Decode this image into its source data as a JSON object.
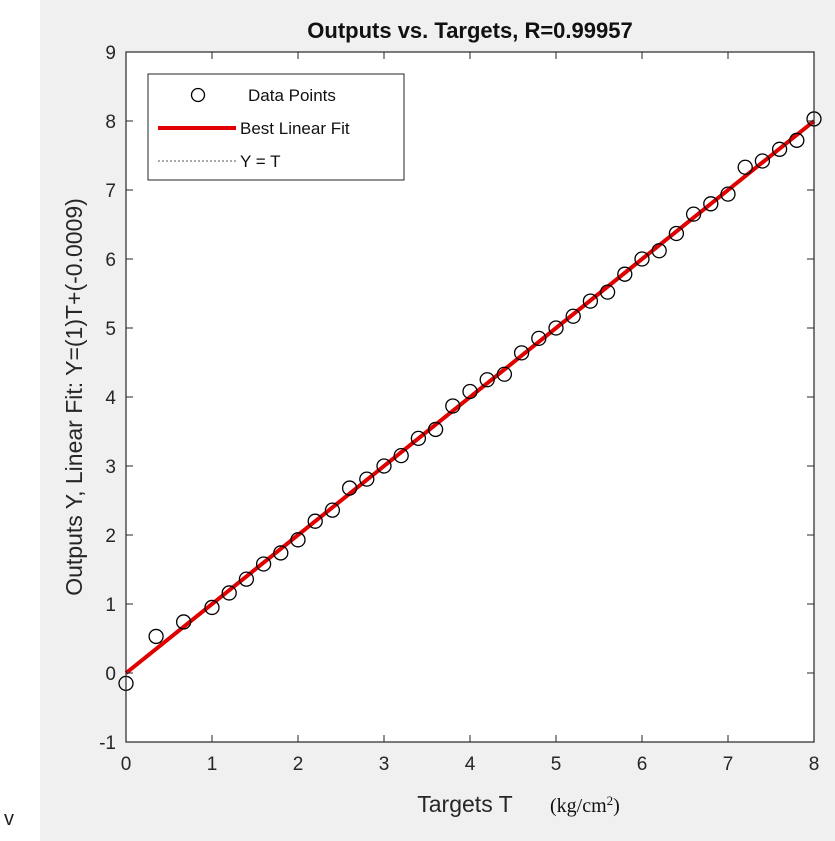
{
  "stray_text": "v",
  "chart_data": {
    "type": "scatter",
    "title": "Outputs vs. Targets, R=0.99957",
    "xlabel": "Targets T",
    "xlabel_units": "(kg/cm",
    "xlabel_units_sup": "2",
    "xlabel_units_close": ")",
    "ylabel": "Outputs Y,  Linear Fit: Y=(1)T+(-0.0009)",
    "xlim": [
      0,
      8
    ],
    "ylim": [
      -1,
      9
    ],
    "xticks": [
      0,
      1,
      2,
      3,
      4,
      5,
      6,
      7,
      8
    ],
    "yticks": [
      -1,
      0,
      1,
      2,
      3,
      4,
      5,
      6,
      7,
      8,
      9
    ],
    "grid": false,
    "legend_position": "top-left",
    "legend": [
      {
        "label": "Data Points",
        "style": "circle-marker",
        "color": "#000000"
      },
      {
        "label": "Best Linear Fit",
        "style": "solid-line",
        "color": "#e00000"
      },
      {
        "label": "Y = T",
        "style": "dotted-line",
        "color": "#000000"
      }
    ],
    "series": [
      {
        "name": "Data Points",
        "x": [
          0.0,
          0.35,
          0.67,
          1.0,
          1.2,
          1.4,
          1.6,
          1.8,
          2.0,
          2.2,
          2.4,
          2.6,
          2.8,
          3.0,
          3.2,
          3.4,
          3.6,
          3.8,
          4.0,
          4.2,
          4.4,
          4.6,
          4.8,
          5.0,
          5.2,
          5.4,
          5.6,
          5.8,
          6.0,
          6.2,
          6.4,
          6.6,
          6.8,
          7.0,
          7.2,
          7.4,
          7.6,
          7.8,
          8.0
        ],
        "y": [
          -0.15,
          0.53,
          0.74,
          0.95,
          1.16,
          1.36,
          1.58,
          1.74,
          1.93,
          2.2,
          2.36,
          2.68,
          2.81,
          3.0,
          3.15,
          3.4,
          3.53,
          3.87,
          4.08,
          4.25,
          4.33,
          4.64,
          4.85,
          5.0,
          5.17,
          5.39,
          5.52,
          5.78,
          6.0,
          6.12,
          6.37,
          6.65,
          6.8,
          6.94,
          7.33,
          7.42,
          7.59,
          7.72,
          8.03
        ]
      },
      {
        "name": "Best Linear Fit",
        "slope": 1,
        "intercept": -0.0009,
        "color": "#e00000"
      },
      {
        "name": "Y = T",
        "slope": 1,
        "intercept": 0,
        "color": "#000000"
      }
    ]
  }
}
